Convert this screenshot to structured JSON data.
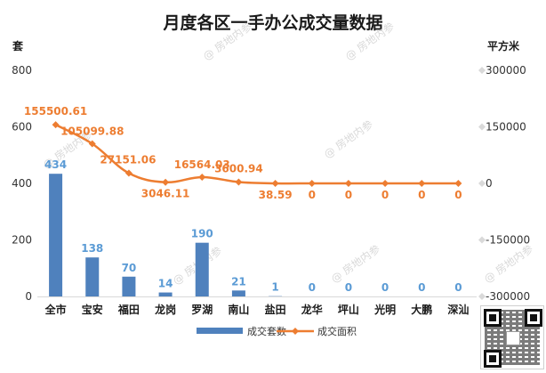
{
  "chart_data": {
    "type": "bar+line",
    "title": "月度各区一手办公成交量数据",
    "left_axis_unit": "套",
    "right_axis_unit": "平方米",
    "categories": [
      "全市",
      "宝安",
      "福田",
      "龙岗",
      "罗湖",
      "南山",
      "盐田",
      "龙华",
      "坪山",
      "光明",
      "大鹏",
      "深汕"
    ],
    "left_axis": {
      "ylim": [
        0,
        800
      ],
      "ticks": [
        "0",
        "200",
        "400",
        "600",
        "800"
      ]
    },
    "right_axis": {
      "ylim": [
        -300000,
        300000
      ],
      "ticks": [
        "-300000",
        "-150000",
        "0",
        "150000",
        "300000"
      ]
    },
    "series": [
      {
        "name": "成交套数",
        "type": "bar",
        "axis": "left",
        "color": "#4f81bd",
        "label_color": "#5b9bd5",
        "values": [
          434,
          138,
          70,
          14,
          190,
          21,
          1,
          0,
          0,
          0,
          0,
          0
        ],
        "labels": [
          "434",
          "138",
          "70",
          "14",
          "190",
          "21",
          "1",
          "0",
          "0",
          "0",
          "0",
          "0"
        ]
      },
      {
        "name": "成交面积",
        "type": "line",
        "axis": "right",
        "color": "#ed7d31",
        "values": [
          155500.61,
          105099.88,
          27151.06,
          3046.11,
          16564.03,
          3600.94,
          38.59,
          0,
          0,
          0,
          0,
          0
        ],
        "labels": [
          "155500.61",
          "105099.88",
          "27151.06",
          "3046.11",
          "16564.03",
          "3600.94",
          "38.59",
          "0",
          "0",
          "0",
          "0",
          "0"
        ]
      }
    ],
    "grid": false,
    "legend": "bottom-center"
  },
  "watermark_text": "房地内参"
}
